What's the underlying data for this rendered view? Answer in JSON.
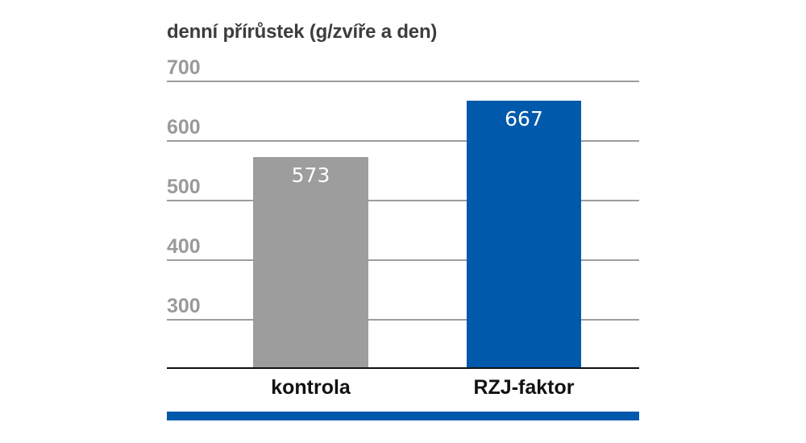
{
  "chart_data": {
    "type": "bar",
    "title": "denní přírůstek (g/zvíře a den)",
    "xlabel": "",
    "ylabel": "denní přírůstek (g/zvíře a den)",
    "categories": [
      "kontrola",
      "RZJ-faktor"
    ],
    "values": [
      573,
      667
    ],
    "value_labels": [
      "573",
      "667"
    ],
    "bar_colors": [
      "#9d9d9d",
      "#0059ab"
    ],
    "yticks": [
      300,
      400,
      500,
      600,
      700
    ],
    "ytick_labels": [
      "300",
      "400",
      "500",
      "600",
      "700"
    ],
    "ylim": [
      220,
      700
    ],
    "grid": true,
    "legend": null
  },
  "colors": {
    "title": "#3d3d3d",
    "tick": "#9a9a9a",
    "gridline": "#9d9d9d",
    "baseline": "#111111",
    "accent": "#0059ab",
    "control": "#9d9d9d"
  }
}
